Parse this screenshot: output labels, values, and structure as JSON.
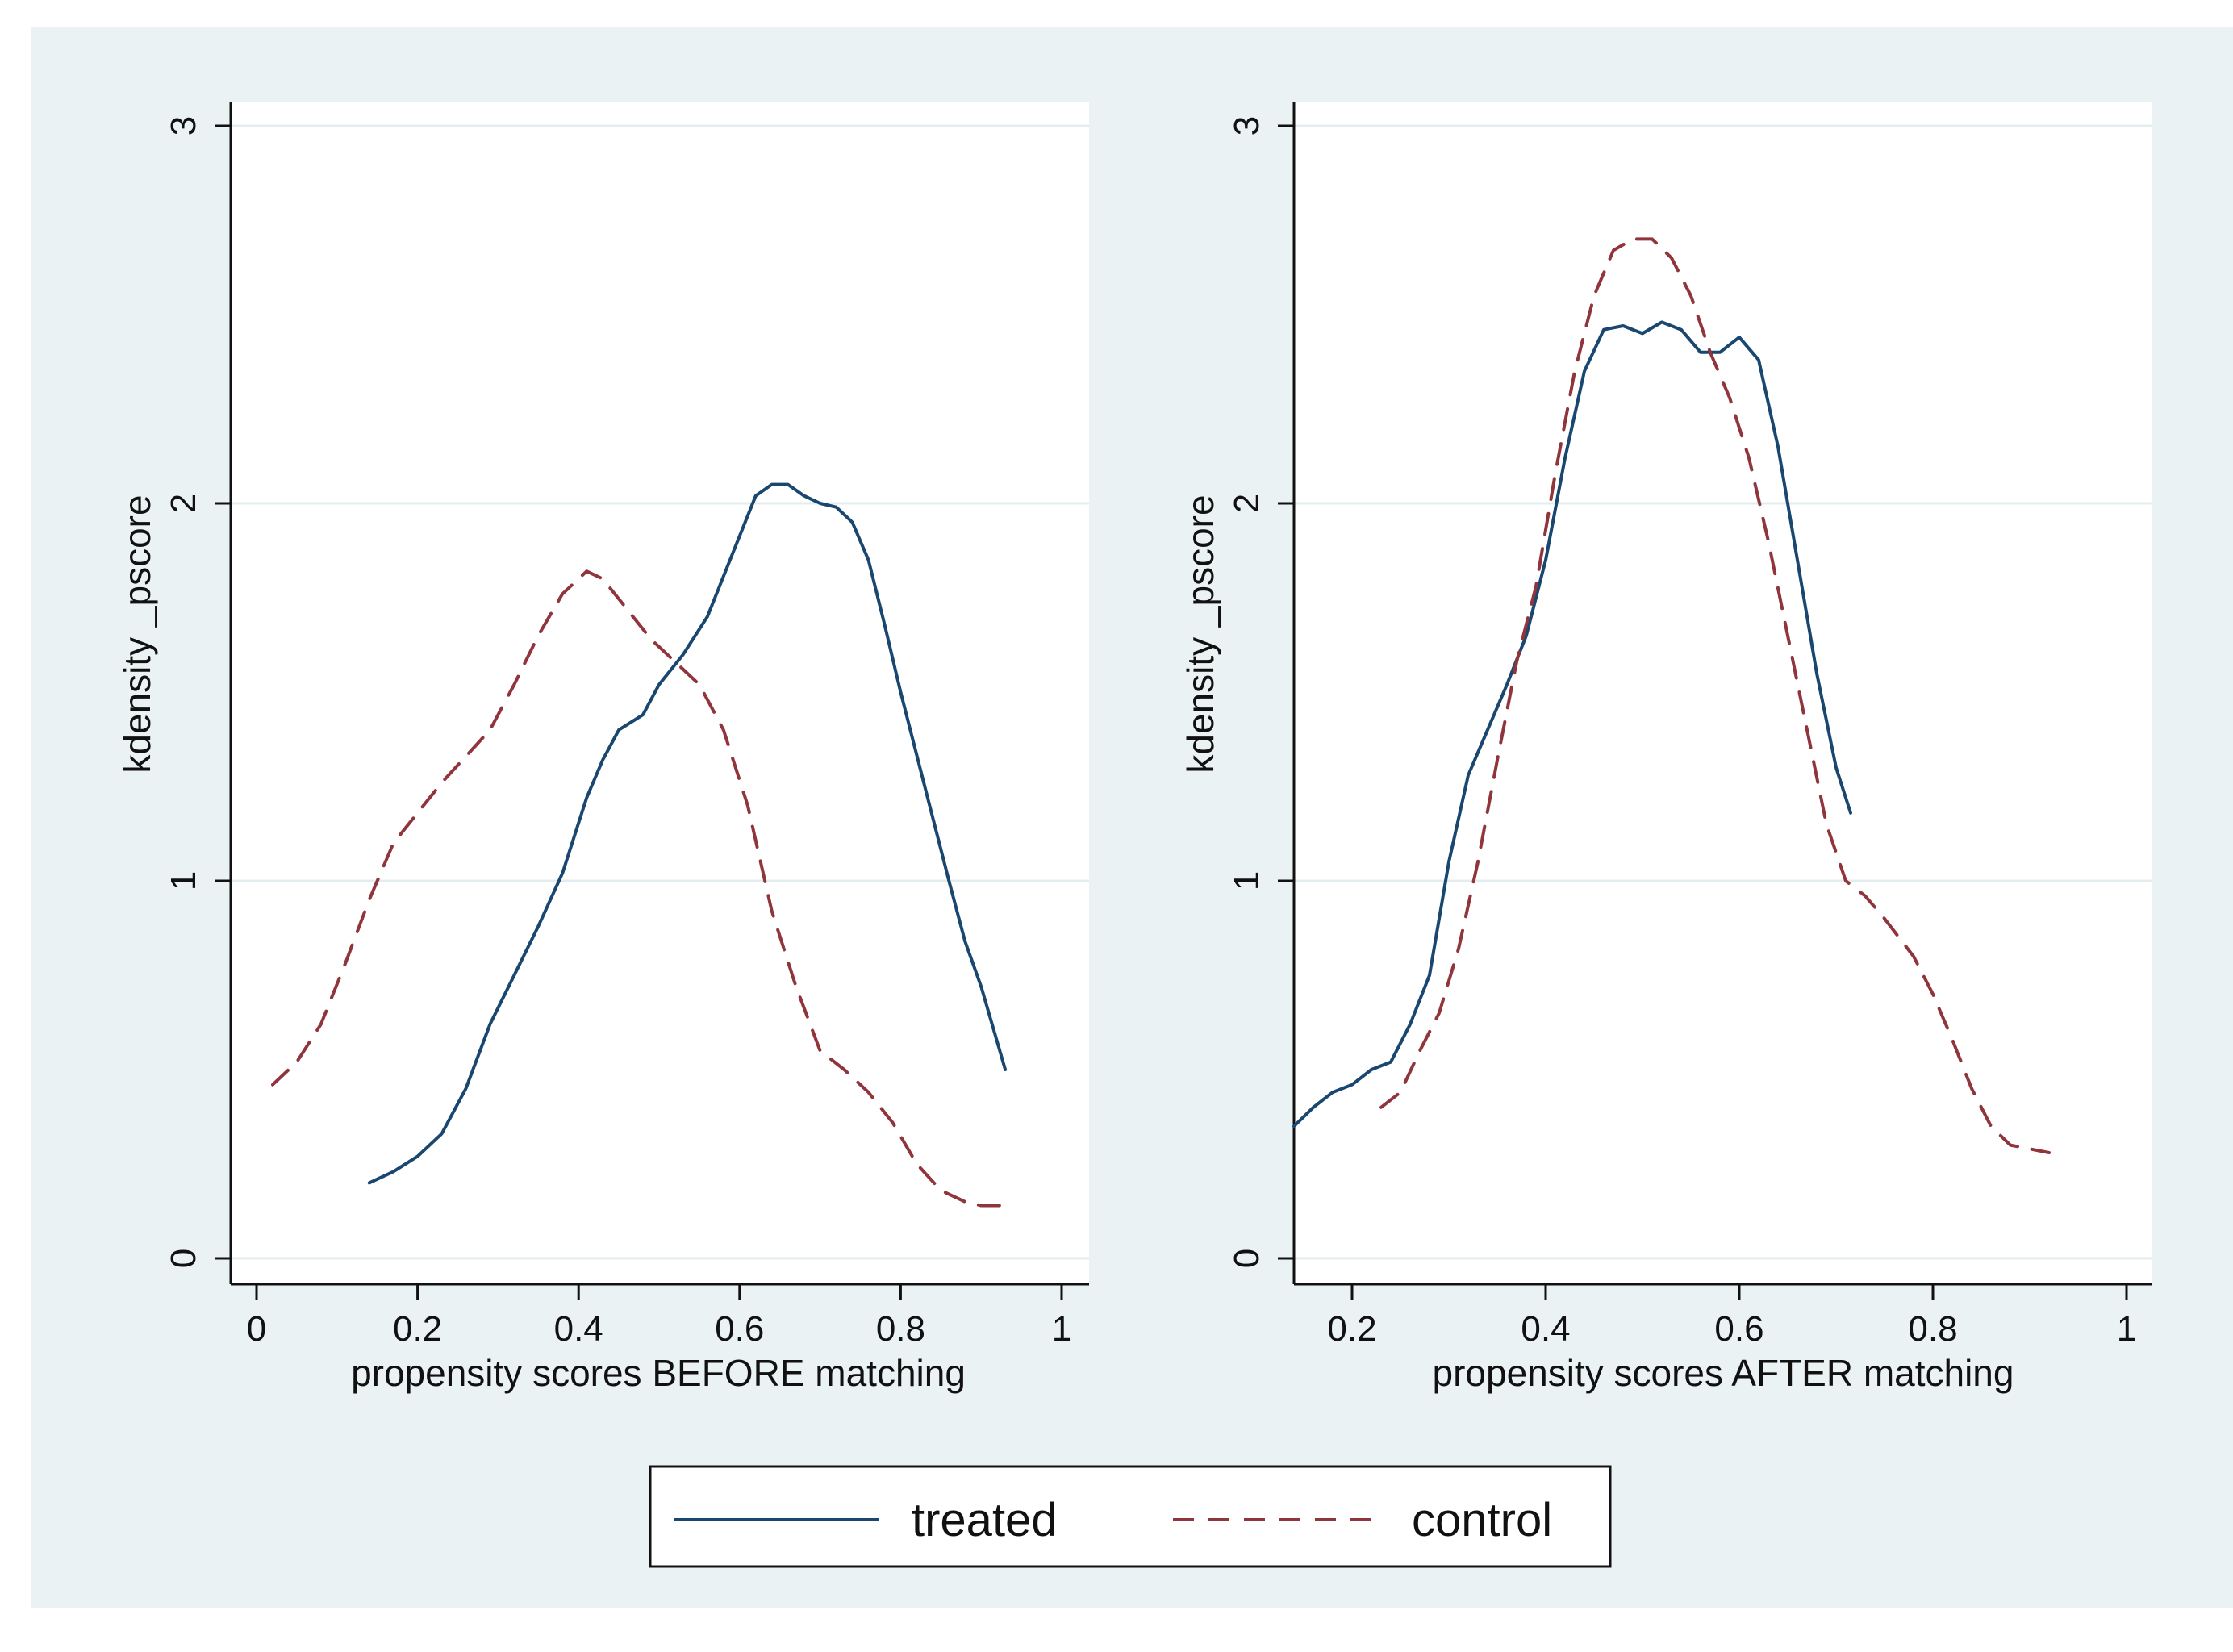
{
  "colors": {
    "outer_background": "#eaf2f3",
    "plot_background": "#ffffff",
    "grid": "#e3ecee",
    "treated": "#1a476f",
    "control": "#90353b"
  },
  "legend": {
    "treated_label": "treated",
    "control_label": "control",
    "placement": "bottom-center"
  },
  "chart_data": [
    {
      "type": "line",
      "title": "",
      "xlabel": "propensity scores BEFORE matching",
      "ylabel": "kdensity _pscore",
      "xlim": [
        0,
        1
      ],
      "ylim": [
        0,
        3
      ],
      "xticks": [
        0,
        0.2,
        0.4,
        0.6,
        0.8,
        1
      ],
      "yticks": [
        0,
        1,
        2,
        3
      ],
      "grid": true,
      "series": [
        {
          "name": "treated",
          "style": "solid",
          "x": [
            0.14,
            0.17,
            0.2,
            0.23,
            0.26,
            0.29,
            0.32,
            0.35,
            0.38,
            0.41,
            0.43,
            0.45,
            0.48,
            0.5,
            0.53,
            0.56,
            0.59,
            0.62,
            0.64,
            0.66,
            0.68,
            0.7,
            0.72,
            0.74,
            0.76,
            0.78,
            0.8,
            0.83,
            0.86,
            0.88,
            0.9,
            0.93
          ],
          "y": [
            0.2,
            0.23,
            0.27,
            0.33,
            0.45,
            0.62,
            0.75,
            0.88,
            1.02,
            1.22,
            1.32,
            1.4,
            1.44,
            1.52,
            1.6,
            1.7,
            1.86,
            2.02,
            2.05,
            2.05,
            2.02,
            2.0,
            1.99,
            1.95,
            1.85,
            1.68,
            1.5,
            1.25,
            1.0,
            0.84,
            0.72,
            0.5
          ]
        },
        {
          "name": "control",
          "style": "dashed",
          "x": [
            0.02,
            0.05,
            0.08,
            0.11,
            0.14,
            0.17,
            0.2,
            0.23,
            0.26,
            0.29,
            0.32,
            0.35,
            0.38,
            0.41,
            0.43,
            0.46,
            0.49,
            0.52,
            0.55,
            0.58,
            0.61,
            0.64,
            0.67,
            0.7,
            0.73,
            0.76,
            0.79,
            0.82,
            0.85,
            0.88,
            0.9,
            0.93
          ],
          "y": [
            0.46,
            0.52,
            0.62,
            0.78,
            0.95,
            1.1,
            1.18,
            1.26,
            1.33,
            1.4,
            1.52,
            1.65,
            1.76,
            1.82,
            1.8,
            1.72,
            1.64,
            1.58,
            1.52,
            1.4,
            1.2,
            0.92,
            0.72,
            0.55,
            0.5,
            0.44,
            0.36,
            0.25,
            0.18,
            0.15,
            0.14,
            0.14
          ]
        }
      ]
    },
    {
      "type": "line",
      "title": "",
      "xlabel": "propensity scores AFTER matching",
      "ylabel": "kdensity _pscore",
      "xlim": [
        0.14,
        1
      ],
      "ylim": [
        0,
        3
      ],
      "xticks": [
        0.2,
        0.4,
        0.6,
        0.8,
        1
      ],
      "yticks": [
        0,
        1,
        2,
        3
      ],
      "grid": true,
      "series": [
        {
          "name": "treated",
          "style": "solid",
          "x": [
            0.14,
            0.16,
            0.18,
            0.2,
            0.22,
            0.24,
            0.26,
            0.28,
            0.3,
            0.32,
            0.34,
            0.36,
            0.38,
            0.4,
            0.42,
            0.44,
            0.46,
            0.48,
            0.5,
            0.52,
            0.54,
            0.56,
            0.58,
            0.6,
            0.62,
            0.64,
            0.66,
            0.68,
            0.7,
            0.715
          ],
          "y": [
            0.35,
            0.4,
            0.44,
            0.46,
            0.5,
            0.52,
            0.62,
            0.75,
            1.05,
            1.28,
            1.4,
            1.52,
            1.65,
            1.85,
            2.12,
            2.35,
            2.46,
            2.47,
            2.45,
            2.48,
            2.46,
            2.4,
            2.4,
            2.44,
            2.38,
            2.15,
            1.85,
            1.55,
            1.3,
            1.18
          ]
        },
        {
          "name": "control",
          "style": "dashed",
          "x": [
            0.23,
            0.25,
            0.27,
            0.29,
            0.31,
            0.33,
            0.35,
            0.37,
            0.39,
            0.41,
            0.43,
            0.45,
            0.47,
            0.49,
            0.51,
            0.53,
            0.55,
            0.57,
            0.59,
            0.61,
            0.63,
            0.65,
            0.67,
            0.69,
            0.71,
            0.73,
            0.75,
            0.78,
            0.8,
            0.82,
            0.84,
            0.86,
            0.88,
            0.9,
            0.92
          ],
          "y": [
            0.4,
            0.44,
            0.55,
            0.65,
            0.82,
            1.05,
            1.32,
            1.58,
            1.78,
            2.08,
            2.35,
            2.55,
            2.67,
            2.7,
            2.7,
            2.65,
            2.55,
            2.4,
            2.28,
            2.12,
            1.9,
            1.65,
            1.4,
            1.15,
            1.0,
            0.96,
            0.9,
            0.8,
            0.7,
            0.58,
            0.45,
            0.35,
            0.3,
            0.29,
            0.28
          ]
        }
      ]
    }
  ]
}
